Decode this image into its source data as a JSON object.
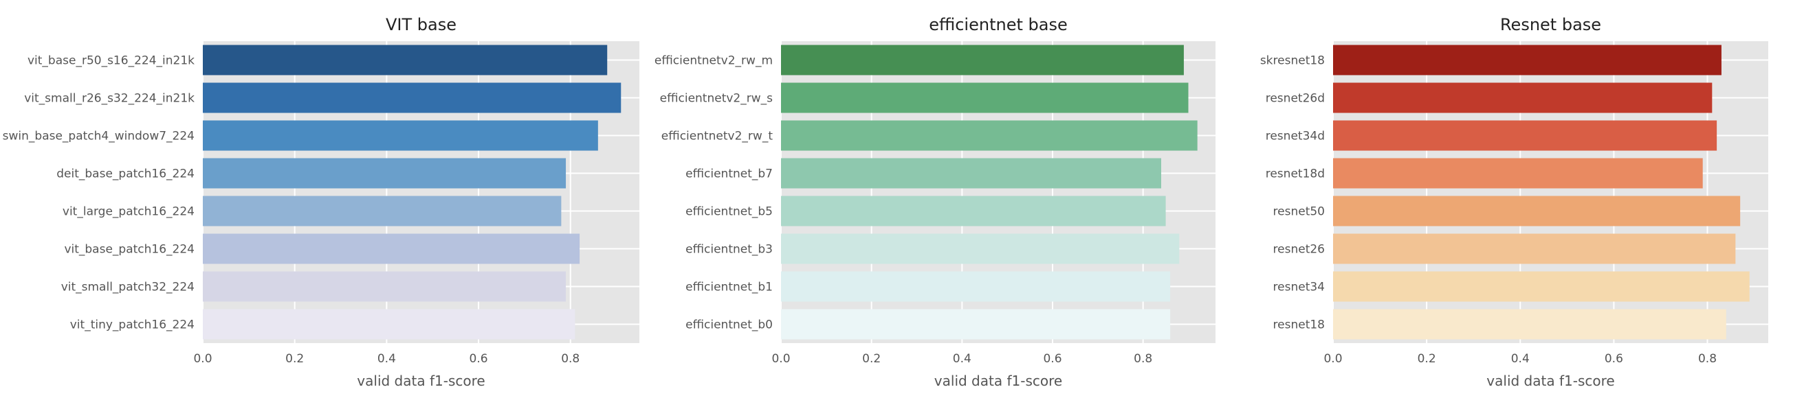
{
  "chart_data": [
    {
      "type": "bar",
      "orientation": "horizontal",
      "title": "VIT base",
      "xlabel": "valid data f1-score",
      "ylabel": "",
      "xlim": [
        0,
        0.95
      ],
      "xticks": [
        "0.0",
        "0.2",
        "0.4",
        "0.6",
        "0.8"
      ],
      "grid": true,
      "categories": [
        "vit_base_r50_s16_224_in21k",
        "vit_small_r26_s32_224_in21k",
        "swin_base_patch4_window7_224",
        "deit_base_patch16_224",
        "vit_large_patch16_224",
        "vit_base_patch16_224",
        "vit_small_patch32_224",
        "vit_tiny_patch16_224"
      ],
      "values": [
        0.88,
        0.91,
        0.86,
        0.79,
        0.78,
        0.82,
        0.79,
        0.81
      ],
      "colors": [
        "#26578a",
        "#336fab",
        "#4a8bc1",
        "#6a9fcb",
        "#91b3d5",
        "#b6c2de",
        "#d6d6e6",
        "#e9e7f2"
      ]
    },
    {
      "type": "bar",
      "orientation": "horizontal",
      "title": "efficientnet base",
      "xlabel": "valid data f1-score",
      "ylabel": "",
      "xlim": [
        0,
        0.96
      ],
      "xticks": [
        "0.0",
        "0.2",
        "0.4",
        "0.6",
        "0.8"
      ],
      "grid": true,
      "categories": [
        "efficientnetv2_rw_m",
        "efficientnetv2_rw_s",
        "efficientnetv2_rw_t",
        "efficientnet_b7",
        "efficientnet_b5",
        "efficientnet_b3",
        "efficientnet_b1",
        "efficientnet_b0"
      ],
      "values": [
        0.89,
        0.9,
        0.92,
        0.84,
        0.85,
        0.88,
        0.86,
        0.86
      ],
      "colors": [
        "#468f53",
        "#5eab77",
        "#76bb93",
        "#8ec8ae",
        "#acd8c9",
        "#cde7e2",
        "#ddeff0",
        "#ebf6f7"
      ]
    },
    {
      "type": "bar",
      "orientation": "horizontal",
      "title": "Resnet base",
      "xlabel": "valid data f1-score",
      "ylabel": "",
      "xlim": [
        0,
        0.93
      ],
      "xticks": [
        "0.0",
        "0.2",
        "0.4",
        "0.6",
        "0.8"
      ],
      "grid": true,
      "categories": [
        "skresnet18",
        "resnet26d",
        "resnet34d",
        "resnet18d",
        "resnet50",
        "resnet26",
        "resnet34",
        "resnet18"
      ],
      "values": [
        0.83,
        0.81,
        0.82,
        0.79,
        0.87,
        0.86,
        0.89,
        0.84
      ],
      "colors": [
        "#9e2017",
        "#c03a2b",
        "#d95e45",
        "#e98a61",
        "#eda773",
        "#f2c394",
        "#f5d9ad",
        "#f9e9cc"
      ]
    }
  ]
}
